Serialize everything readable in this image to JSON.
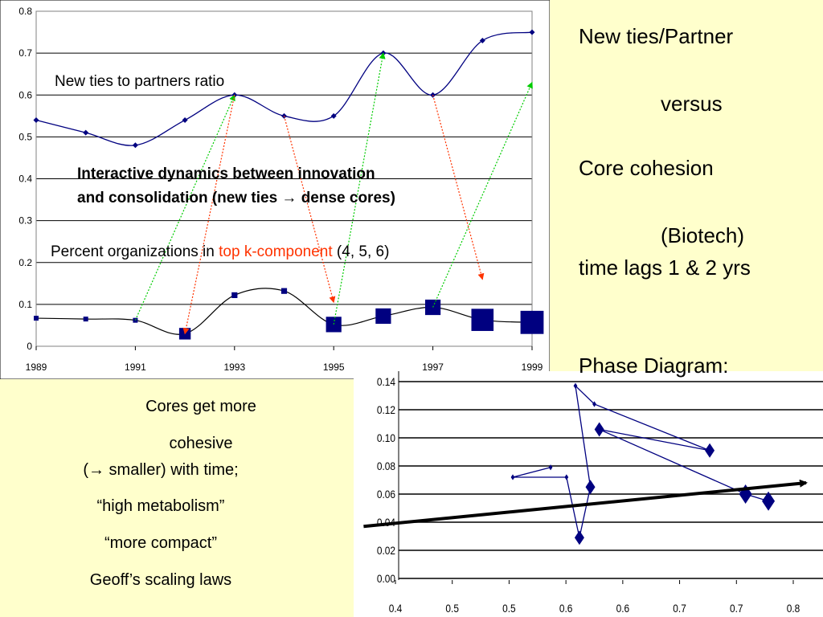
{
  "right_panel": {
    "line1": "New ties/Partner",
    "line2": "versus",
    "line3": "Core cohesion",
    "line4": "(Biotech)",
    "line5": "time lags 1 & 2 yrs",
    "line6": "Phase Diagram:"
  },
  "left_notes": {
    "line1": "Cores get more",
    "line2": "cohesive",
    "line3": "(→ smaller) with time;",
    "line4": "“high metabolism”",
    "line5": "“more compact”",
    "line6": "Geoff’s scaling laws"
  },
  "colors": {
    "background": "#ffffcc",
    "series": "#000080",
    "lag_arrow_1": "#00cc00",
    "lag_arrow_2": "#ff3300",
    "highlight_text": "#ff3300"
  },
  "chart_data": [
    {
      "type": "line",
      "title": "",
      "x": [
        1989,
        1990,
        1991,
        1992,
        1993,
        1994,
        1995,
        1996,
        1997,
        1998,
        1999
      ],
      "xticks": [
        "1989",
        "1991",
        "1993",
        "1995",
        "1997",
        "1999"
      ],
      "yticks": [
        "0",
        "0.1",
        "0.2",
        "0.3",
        "0.4",
        "0.5",
        "0.6",
        "0.7",
        "0.8"
      ],
      "xlim": [
        1989,
        1999
      ],
      "ylim": [
        0,
        0.8
      ],
      "grid": "horizontal",
      "annotations": {
        "ratio_label": "New ties to partners ratio",
        "dynamics_line1": "Interactive dynamics between innovation",
        "dynamics_line2": "and consolidation (new ties → dense cores)",
        "percent_pre": "Percent organizations in ",
        "percent_red": "top k-component",
        "percent_post": " (4, 5, 6)"
      },
      "series": [
        {
          "values": [
            0.54,
            0.51,
            0.48,
            0.54,
            0.6,
            0.55,
            0.55,
            0.7,
            0.6,
            0.73,
            0.75
          ]
        },
        {
          "values": [
            0.067,
            0.065,
            0.062,
            0.03,
            0.122,
            0.132,
            0.052,
            0.072,
            0.093,
            0.063,
            0.057
          ],
          "marker_scale": [
            0.5,
            0.5,
            0.5,
            1.2,
            0.6,
            0.6,
            1.6,
            1.6,
            1.6,
            2.3,
            2.4
          ]
        }
      ],
      "lag_arrows": [
        {
          "from_x": 1991,
          "from_y": 0.062,
          "to_x": 1993,
          "to_y": 0.6,
          "color": "#00cc00"
        },
        {
          "from_x": 1995,
          "from_y": 0.052,
          "to_x": 1996,
          "to_y": 0.7,
          "color": "#00cc00"
        },
        {
          "from_x": 1997,
          "from_y": 0.093,
          "to_x": 1999,
          "to_y": 0.63,
          "color": "#00cc00"
        },
        {
          "from_x": 1993,
          "from_y": 0.6,
          "to_x": 1992,
          "to_y": 0.03,
          "color": "#ff3300"
        },
        {
          "from_x": 1994,
          "from_y": 0.55,
          "to_x": 1995,
          "to_y": 0.105,
          "color": "#ff3300"
        },
        {
          "from_x": 1997,
          "from_y": 0.6,
          "to_x": 1998,
          "to_y": 0.16,
          "color": "#ff3300"
        }
      ]
    },
    {
      "type": "scatter",
      "title": "",
      "xticks": [
        "0.4",
        "0.5",
        "0.5",
        "0.6",
        "0.6",
        "0.7",
        "0.7",
        "0.8"
      ],
      "yticks": [
        "0.00",
        "0.02",
        "0.04",
        "0.06",
        "0.08",
        "0.10",
        "0.12",
        "0.14"
      ],
      "xlim": [
        0.4,
        0.8
      ],
      "ylim": [
        0,
        0.14
      ],
      "grid": "horizontal",
      "series": [
        {
          "x": [
            0.556,
            0.518,
            0.572,
            0.585,
            0.596,
            0.581,
            0.6,
            0.716,
            0.605,
            0.752,
            0.775
          ],
          "y": [
            0.079,
            0.072,
            0.072,
            0.029,
            0.065,
            0.137,
            0.124,
            0.091,
            0.106,
            0.06,
            0.055
          ],
          "marker_scale": [
            0.6,
            0.6,
            0.6,
            1.5,
            1.5,
            0.6,
            0.6,
            1.5,
            1.5,
            2.0,
            2.0
          ]
        }
      ],
      "trend_arrow": {
        "from_x": 0.368,
        "from_y": 0.037,
        "to_x": 0.8,
        "to_y": 0.068,
        "color": "#000000"
      }
    }
  ]
}
